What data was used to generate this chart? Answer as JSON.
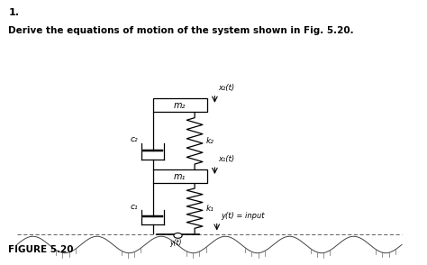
{
  "title_number": "1.",
  "title_text": "Derive the equations of motion of the system shown in Fig. 5.20.",
  "figure_label": "FIGURE 5.20",
  "background_color": "#ffffff",
  "mass1_label": "m₁",
  "mass2_label": "m₂",
  "spring1_label": "k₁",
  "spring2_label": "k₂",
  "damper1_label": "c₁",
  "damper2_label": "c₂",
  "x1_label": "x₁(t)",
  "x2_label": "x₂(t)",
  "y_label": "y(t) = input",
  "y_short_label": "y(t)"
}
